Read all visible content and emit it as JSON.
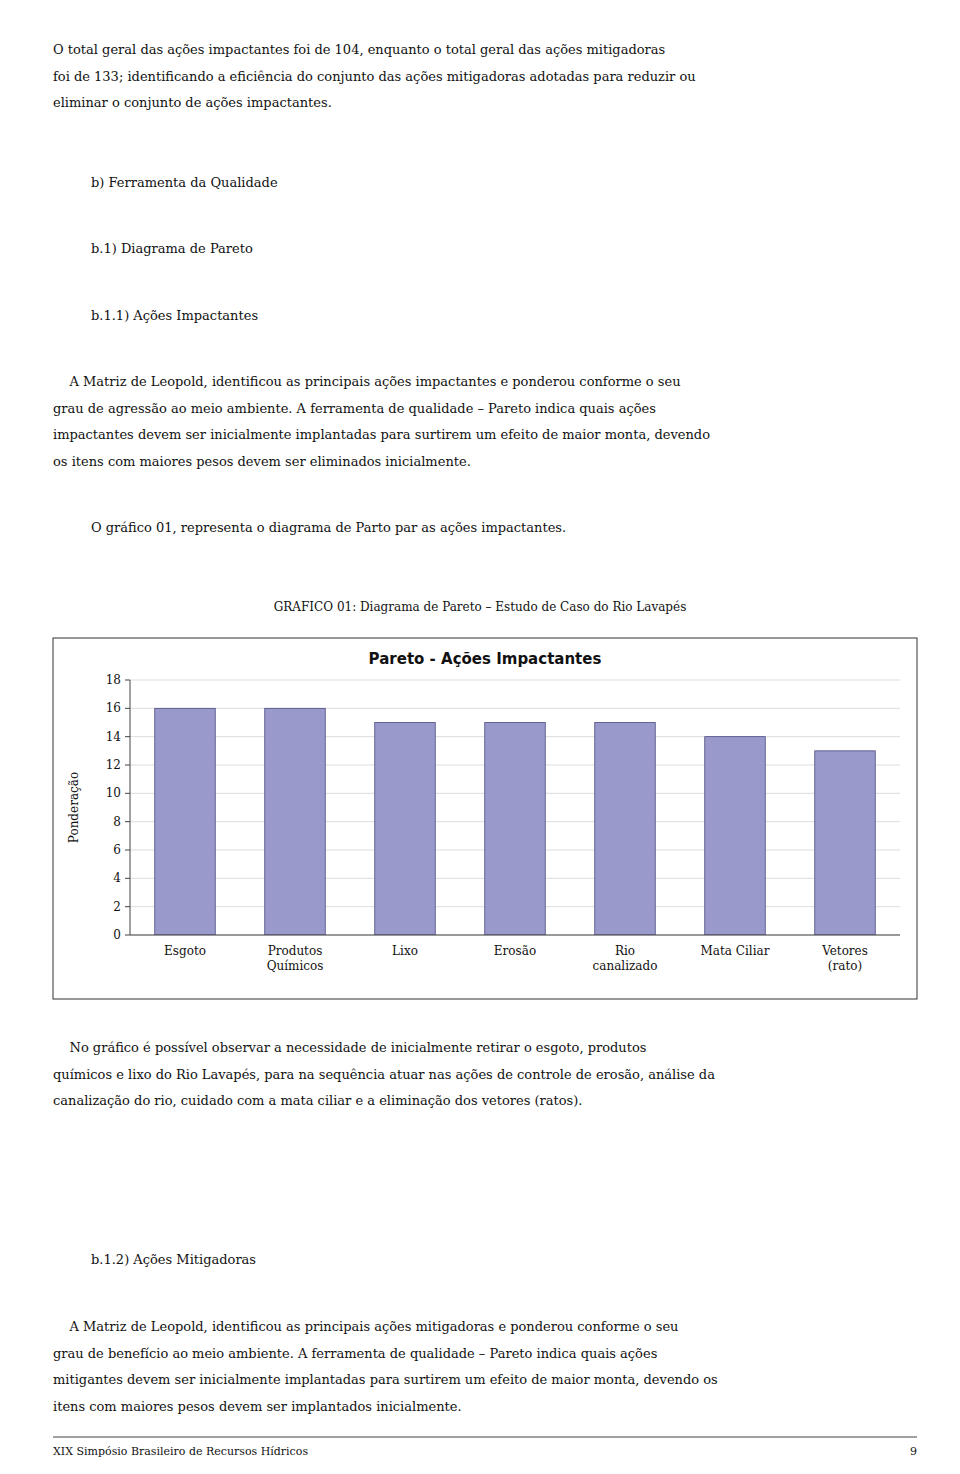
{
  "chart_data": {
    "type": "bar",
    "title": "Pareto - Ações Impactantes",
    "ylabel": "Ponderação",
    "categories": [
      "Esgoto",
      "Produtos\nQuímicos",
      "Lixo",
      "Erosão",
      "Rio\ncanalizado",
      "Mata Ciliar",
      "Vetores\n(rato)"
    ],
    "values": [
      16,
      16,
      15,
      15,
      15,
      14,
      13
    ],
    "color": "#9999cc",
    "ylim": [
      0,
      18
    ],
    "yticks": [
      0,
      2,
      4,
      6,
      8,
      10,
      12,
      14,
      16,
      18
    ],
    "grid": true
  },
  "page": {
    "intro": [
      "O total geral das ações impactantes foi de 104, enquanto o total geral das ações mitigadoras",
      "foi de 133; identificando a eficiência do conjunto das ações mitigadoras adotadas para reduzir ou",
      "eliminar o conjunto de ações impactantes."
    ],
    "heading_b": "b) Ferramenta da Qualidade",
    "heading_b1": "b.1) Diagrama de Pareto",
    "heading_b11": "b.1.1) Ações Impactantes",
    "body1": [
      "    A Matriz de Leopold, identificou as principais ações impactantes e ponderou conforme o seu",
      "grau de agressão ao meio ambiente. A ferramenta de qualidade – Pareto indica quais ações",
      "impactantes devem ser inicialmente implantadas para surtirem um efeito de maior monta, devendo",
      "os itens com maiores pesos devem ser eliminados inicialmente."
    ],
    "graph_note": "O gráfico 01, representa o diagrama de Parto par as ações impactantes.",
    "caption": "GRAFICO 01: Diagrama de Pareto – Estudo de Caso do Rio Lavapés",
    "after": [
      "    No gráfico é possível observar a necessidade de inicialmente retirar o esgoto, produtos",
      "químicos e lixo do Rio Lavapés, para na sequência atuar nas ações de controle de erosão, análise da",
      "canalização do rio, cuidado com a mata ciliar e a eliminação dos vetores (ratos)."
    ],
    "heading_b12": "b.1.2) Ações Mitigadoras",
    "body2": [
      "    A Matriz de Leopold, identificou as principais ações mitigadoras e ponderou conforme o seu",
      "grau de benefício ao meio ambiente. A ferramenta de qualidade – Pareto indica quais ações",
      "mitigantes devem ser inicialmente implantadas para surtirem um efeito de maior monta, devendo os",
      "itens com maiores pesos devem ser implantados inicialmente."
    ],
    "footer_left": "XIX Simpósio Brasileiro de Recursos Hídricos",
    "footer_right": "9"
  }
}
